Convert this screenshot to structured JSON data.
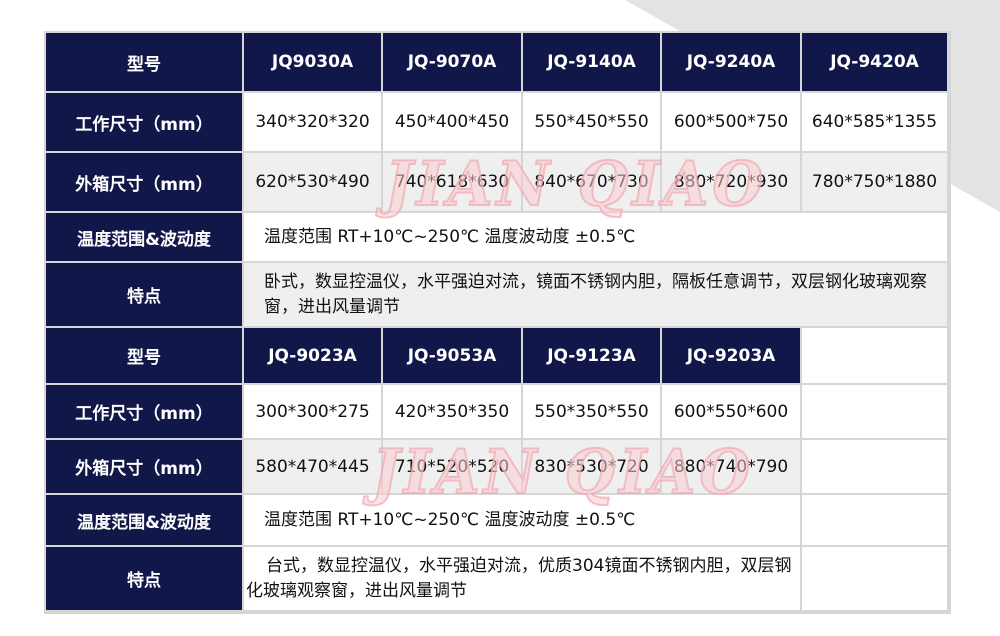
{
  "watermark": "JIAN QIAO",
  "colors": {
    "header_bg": "#12174a",
    "alt_row": "#efefef",
    "watermark": "#f4c3c8"
  },
  "table1": {
    "rows": [
      {
        "label": "型号",
        "values": [
          "JQ9030A",
          "JQ-9070A",
          "JQ-9140A",
          "JQ-9240A",
          "JQ-9420A"
        ]
      },
      {
        "label": "工作尺寸（mm）",
        "values": [
          "340*320*320",
          "450*400*450",
          "550*450*550",
          "600*500*750",
          "640*585*1355"
        ]
      },
      {
        "label": "外箱尺寸（mm）",
        "values": [
          "620*530*490",
          "740*618*630",
          "840*670*730",
          "880*720*930",
          "780*750*1880"
        ]
      },
      {
        "label": "温度范围&波动度",
        "text": "温度范围 RT+10℃~250℃  温度波动度 ±0.5℃"
      },
      {
        "label": "特点",
        "text": "卧式，数显控温仪，水平强迫对流，镜面不锈钢内胆，隔板任意调节，双层钢化玻璃观察窗，进出风量调节"
      }
    ]
  },
  "table2": {
    "rows": [
      {
        "label": "型号",
        "values": [
          "JQ-9023A",
          "JQ-9053A",
          "JQ-9123A",
          "JQ-9203A"
        ]
      },
      {
        "label": "工作尺寸（mm）",
        "values": [
          "300*300*275",
          "420*350*350",
          "550*350*550",
          "600*550*600"
        ]
      },
      {
        "label": "外箱尺寸（mm）",
        "values": [
          "580*470*445",
          "710*520*520",
          "830*530*720",
          "880*740*790"
        ]
      },
      {
        "label": "温度范围&波动度",
        "text": "温度范围 RT+10℃~250℃  温度波动度 ±0.5℃"
      },
      {
        "label": "特点",
        "text": "台式，数显控温仪，水平强迫对流，优质304镜面不锈钢内胆，双层钢化玻璃观察窗，进出风量调节"
      }
    ]
  }
}
